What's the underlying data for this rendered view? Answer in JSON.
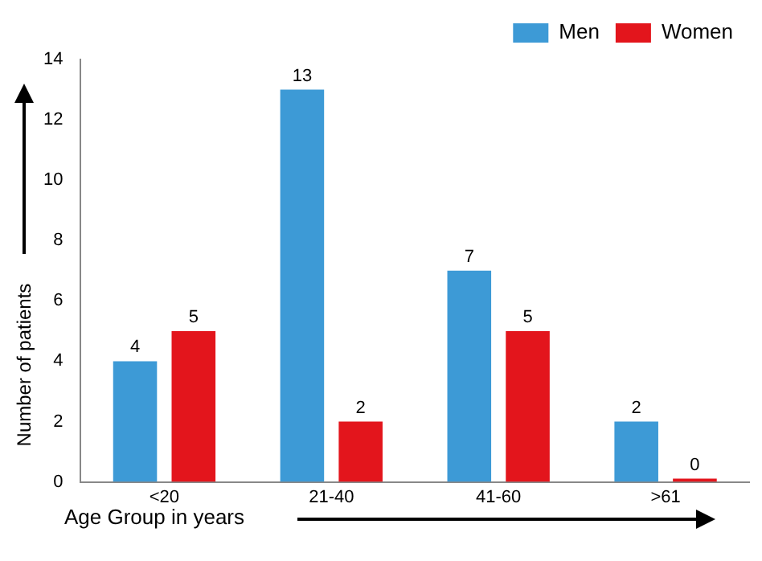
{
  "chart_data": {
    "type": "bar",
    "xlabel": "Age Group in years",
    "ylabel": "Number of patients",
    "categories": [
      "<20",
      "21-40",
      "41-60",
      ">61"
    ],
    "series": [
      {
        "name": "Men",
        "color": "#3d9ad6",
        "values": [
          4,
          13,
          7,
          2
        ]
      },
      {
        "name": "Women",
        "color": "#e3151c",
        "values": [
          5,
          2,
          5,
          0
        ]
      }
    ],
    "ylim": [
      0,
      14
    ],
    "yticks": [
      0,
      2,
      4,
      6,
      8,
      10,
      12,
      14
    ],
    "grid": false,
    "legend": "top right",
    "data_labels": true
  }
}
